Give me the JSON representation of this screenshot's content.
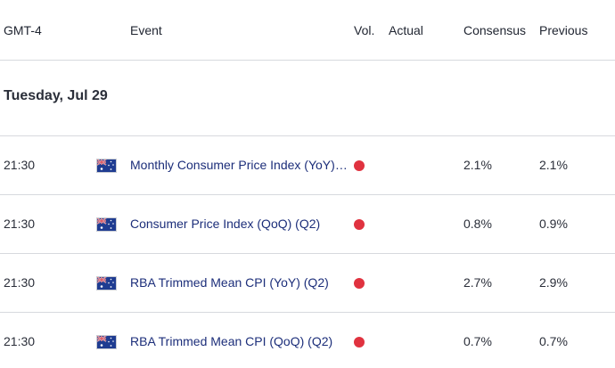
{
  "header": {
    "timezone": "GMT-4",
    "event": "Event",
    "volatility": "Vol.",
    "actual": "Actual",
    "consensus": "Consensus",
    "previous": "Previous"
  },
  "day": {
    "label": "Tuesday, Jul 29"
  },
  "colors": {
    "event_link": "#1c2e7a",
    "high_volatility": "#e0323f",
    "divider": "#d7d9de",
    "flag_blue": "#1f3c91",
    "flag_red": "#d0202e"
  },
  "events": [
    {
      "time": "21:30",
      "country_icon": "australia-flag-icon",
      "name": "Monthly Consumer Price Index (YoY) (JUN)",
      "volatility": "high",
      "actual": "",
      "consensus": "2.1%",
      "previous": "2.1%"
    },
    {
      "time": "21:30",
      "country_icon": "australia-flag-icon",
      "name": "Consumer Price Index (QoQ) (Q2)",
      "volatility": "high",
      "actual": "",
      "consensus": "0.8%",
      "previous": "0.9%"
    },
    {
      "time": "21:30",
      "country_icon": "australia-flag-icon",
      "name": "RBA Trimmed Mean CPI (YoY) (Q2)",
      "volatility": "high",
      "actual": "",
      "consensus": "2.7%",
      "previous": "2.9%"
    },
    {
      "time": "21:30",
      "country_icon": "australia-flag-icon",
      "name": "RBA Trimmed Mean CPI (QoQ) (Q2)",
      "volatility": "high",
      "actual": "",
      "consensus": "0.7%",
      "previous": "0.7%"
    }
  ]
}
